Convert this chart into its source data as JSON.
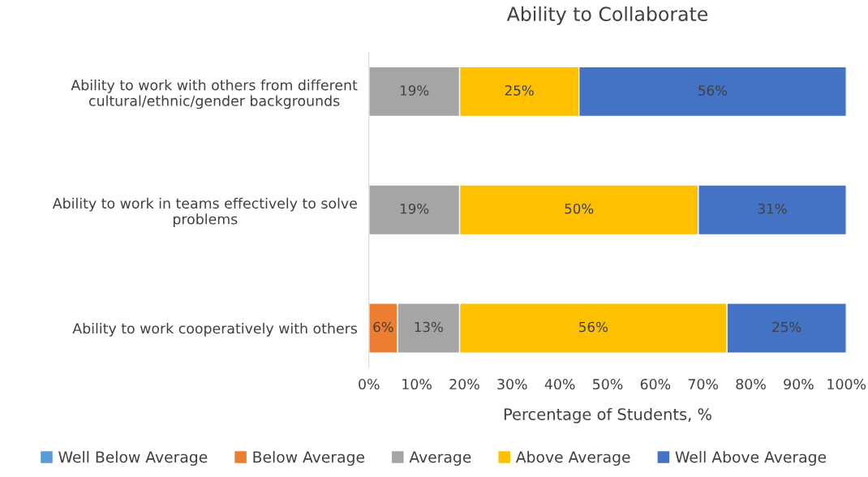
{
  "chart_data": {
    "type": "bar",
    "title": "Ability to Collaborate",
    "xlabel": "Percentage of Students, %",
    "orientation": "horizontal",
    "stacked": true,
    "categories": [
      "Ability to work with others from different\ncultural/ethnic/gender backgrounds",
      "Ability to work in teams effectively to solve\nproblems",
      "Ability to work cooperatively with others"
    ],
    "series": [
      {
        "name": "Well Below Average",
        "color": "#5b9bd5",
        "values": [
          0,
          0,
          0
        ],
        "value_labels": [
          null,
          null,
          null
        ]
      },
      {
        "name": "Below Average",
        "color": "#ed7d31",
        "values": [
          0,
          0,
          6
        ],
        "value_labels": [
          null,
          null,
          "6%"
        ]
      },
      {
        "name": "Average",
        "color": "#a5a5a5",
        "values": [
          19,
          19,
          13
        ],
        "value_labels": [
          "19%",
          "19%",
          "13%"
        ]
      },
      {
        "name": "Above Average",
        "color": "#ffc000",
        "values": [
          25,
          50,
          56
        ],
        "value_labels": [
          "25%",
          "50%",
          "56%"
        ]
      },
      {
        "name": "Well Above Average",
        "color": "#4472c4",
        "values": [
          56,
          31,
          25
        ],
        "value_labels": [
          "56%",
          "31%",
          "25%"
        ]
      }
    ],
    "xlim": [
      0,
      100
    ],
    "xticks": [
      {
        "value": 0,
        "label": "0%"
      },
      {
        "value": 10,
        "label": "10%"
      },
      {
        "value": 20,
        "label": "20%"
      },
      {
        "value": 30,
        "label": "30%"
      },
      {
        "value": 40,
        "label": "40%"
      },
      {
        "value": 50,
        "label": "50%"
      },
      {
        "value": 60,
        "label": "60%"
      },
      {
        "value": 70,
        "label": "70%"
      },
      {
        "value": 80,
        "label": "80%"
      },
      {
        "value": 90,
        "label": "90%"
      },
      {
        "value": 100,
        "label": "100%"
      }
    ],
    "grid": false,
    "legend": "bottom"
  }
}
